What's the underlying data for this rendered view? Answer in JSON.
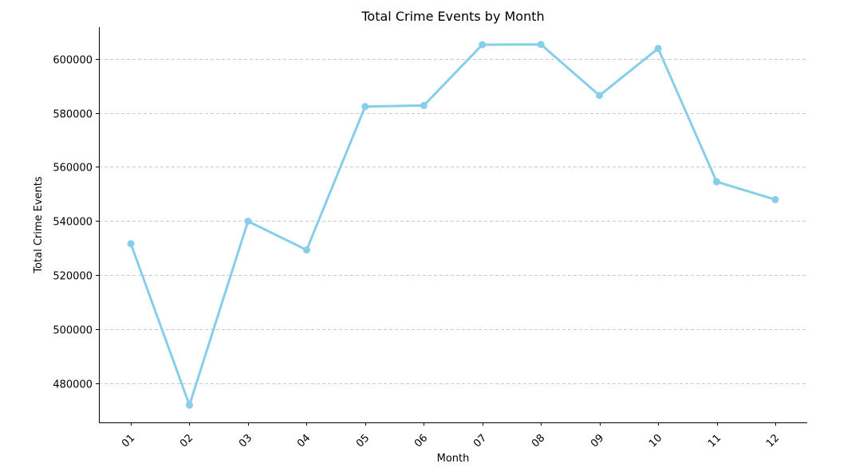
{
  "chart_data": {
    "type": "line",
    "title": "Total Crime Events by Month",
    "xlabel": "Month",
    "ylabel": "Total Crime Events",
    "categories": [
      "01",
      "02",
      "03",
      "04",
      "05",
      "06",
      "07",
      "08",
      "09",
      "10",
      "11",
      "12"
    ],
    "series": [
      {
        "name": "Total Crime Events",
        "values": [
          531600,
          471900,
          539900,
          529300,
          582300,
          582700,
          605200,
          605300,
          586400,
          603800,
          554500,
          547900
        ]
      }
    ],
    "ylim": [
      465500,
      611700
    ],
    "yticks": [
      480000,
      500000,
      520000,
      540000,
      560000,
      580000,
      600000
    ],
    "grid": "y-dashed",
    "line_color": "#87CEEB",
    "grid_color": "#c8c8c8"
  }
}
